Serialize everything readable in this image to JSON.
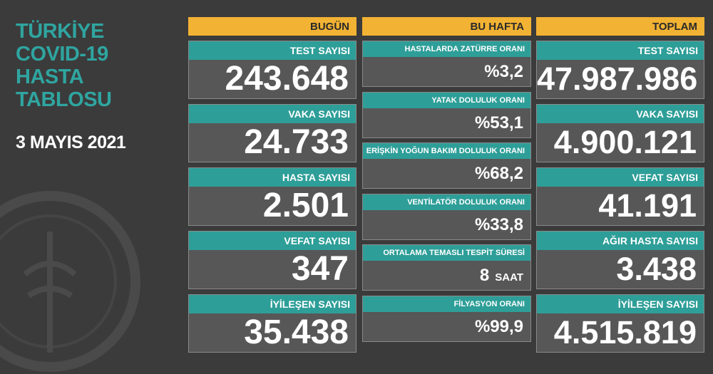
{
  "title": [
    "TÜRKİYE",
    "COVID-19",
    "HASTA",
    "TABLOSU"
  ],
  "date": "3 MAYIS 2021",
  "columns": [
    {
      "header": "BUGÜN",
      "cards": [
        {
          "label": "TEST SAYISI",
          "value": "243.648"
        },
        {
          "label": "VAKA SAYISI",
          "value": "24.733"
        },
        {
          "label": "HASTA SAYISI",
          "value": "2.501"
        },
        {
          "label": "VEFAT SAYISI",
          "value": "347"
        },
        {
          "label": "İYİLEŞEN SAYISI",
          "value": "35.438"
        }
      ]
    },
    {
      "header": "BU HAFTA",
      "cards": [
        {
          "label": "HASTALARDA ZATÜRRE ORANI",
          "value": "%3,2"
        },
        {
          "label": "YATAK DOLULUK ORANI",
          "value": "%53,1"
        },
        {
          "label": "ERİŞKİN YOĞUN BAKIM DOLULUK ORANI",
          "value": "%68,2"
        },
        {
          "label": "VENTİLATÖR DOLULUK ORANI",
          "value": "%33,8"
        },
        {
          "label": "ORTALAMA TEMASLI TESPİT SÜRESİ",
          "value": "8",
          "unit": "SAAT"
        },
        {
          "label": "FİLYASYON ORANI",
          "value": "%99,9"
        }
      ]
    },
    {
      "header": "TOPLAM",
      "cards": [
        {
          "label": "TEST SAYISI",
          "value": "47.987.986"
        },
        {
          "label": "VAKA SAYISI",
          "value": "4.900.121"
        },
        {
          "label": "VEFAT SAYISI",
          "value": "41.191"
        },
        {
          "label": "AĞIR HASTA SAYISI",
          "value": "3.438"
        },
        {
          "label": "İYİLEŞEN SAYISI",
          "value": "4.515.819"
        }
      ]
    }
  ]
}
